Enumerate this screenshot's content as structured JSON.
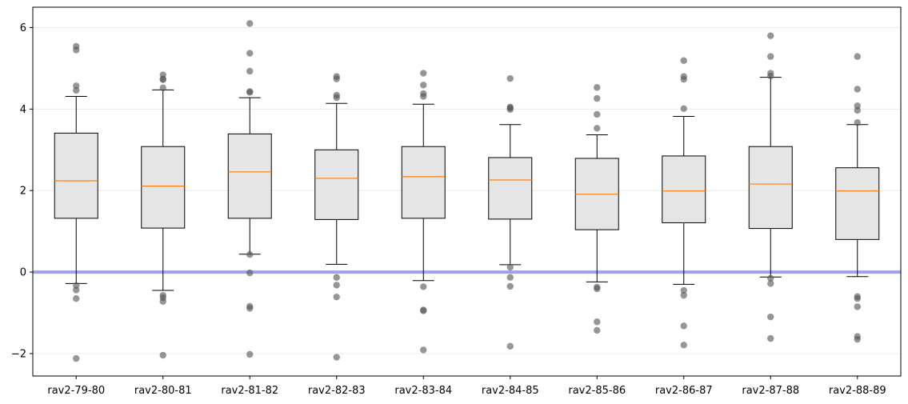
{
  "chart_data": {
    "type": "box",
    "title": "",
    "xlabel": "",
    "ylabel": "",
    "ylim": [
      -2.55,
      6.5
    ],
    "yticks": [
      -2,
      0,
      2,
      4,
      6
    ],
    "ytick_labels": [
      "−2",
      "0",
      "2",
      "4",
      "6"
    ],
    "grid": "horizontal, light",
    "reference_line": {
      "y": 0,
      "color": "#99a3ee"
    },
    "colors": {
      "box_fill": "#e5e5e5",
      "box_edge": "#000000",
      "median": "#ff7f0e",
      "outlier": "#555555"
    },
    "categories": [
      "rav2-79-80",
      "rav2-80-81",
      "rav2-81-82",
      "rav2-82-83",
      "rav2-83-84",
      "rav2-84-85",
      "rav2-85-86",
      "rav2-86-87",
      "rav2-87-88",
      "rav2-88-89"
    ],
    "boxes": [
      {
        "whislo": -0.28,
        "q1": 1.32,
        "med": 2.24,
        "q3": 3.41,
        "whishi": 4.31,
        "fliers": [
          5.54,
          5.45,
          4.57,
          4.46,
          -0.33,
          -0.44,
          -0.65,
          -2.12
        ]
      },
      {
        "whislo": -0.45,
        "q1": 1.08,
        "med": 2.11,
        "q3": 3.08,
        "whishi": 4.47,
        "fliers": [
          4.84,
          4.74,
          4.72,
          4.52,
          -0.57,
          -0.63,
          -0.72,
          -2.04
        ]
      },
      {
        "whislo": 0.44,
        "q1": 1.32,
        "med": 2.46,
        "q3": 3.39,
        "whishi": 4.28,
        "fliers": [
          6.1,
          5.37,
          4.93,
          4.43,
          4.41,
          0.43,
          -0.02,
          -0.84,
          -0.89,
          -2.02
        ]
      },
      {
        "whislo": 0.19,
        "q1": 1.29,
        "med": 2.3,
        "q3": 3.0,
        "whishi": 4.14,
        "fliers": [
          4.8,
          4.74,
          4.34,
          4.28,
          -0.13,
          -0.32,
          -0.61,
          -2.09
        ]
      },
      {
        "whislo": -0.21,
        "q1": 1.32,
        "med": 2.34,
        "q3": 3.08,
        "whishi": 4.12,
        "fliers": [
          4.88,
          4.59,
          4.38,
          4.31,
          -0.36,
          -0.93,
          -0.95,
          -1.91
        ]
      },
      {
        "whislo": 0.18,
        "q1": 1.3,
        "med": 2.26,
        "q3": 2.81,
        "whishi": 3.62,
        "fliers": [
          4.75,
          4.05,
          4.03,
          3.99,
          0.12,
          -0.13,
          -0.35,
          -1.82
        ]
      },
      {
        "whislo": -0.24,
        "q1": 1.04,
        "med": 1.91,
        "q3": 2.79,
        "whishi": 3.37,
        "fliers": [
          4.53,
          4.26,
          3.87,
          3.53,
          -0.37,
          -0.41,
          -1.22,
          -1.43
        ]
      },
      {
        "whislo": -0.3,
        "q1": 1.21,
        "med": 1.99,
        "q3": 2.85,
        "whishi": 3.82,
        "fliers": [
          5.19,
          4.8,
          4.73,
          4.01,
          -0.45,
          -0.57,
          -1.32,
          -1.79
        ]
      },
      {
        "whislo": -0.12,
        "q1": 1.07,
        "med": 2.16,
        "q3": 3.08,
        "whishi": 4.78,
        "fliers": [
          5.8,
          5.29,
          4.88,
          4.81,
          -0.15,
          -0.28,
          -1.1,
          -1.63
        ]
      },
      {
        "whislo": -0.11,
        "q1": 0.8,
        "med": 1.99,
        "q3": 2.56,
        "whishi": 3.62,
        "fliers": [
          5.29,
          4.49,
          4.08,
          3.97,
          3.67,
          -0.6,
          -0.65,
          -0.85,
          -1.58,
          -1.65
        ]
      }
    ]
  }
}
